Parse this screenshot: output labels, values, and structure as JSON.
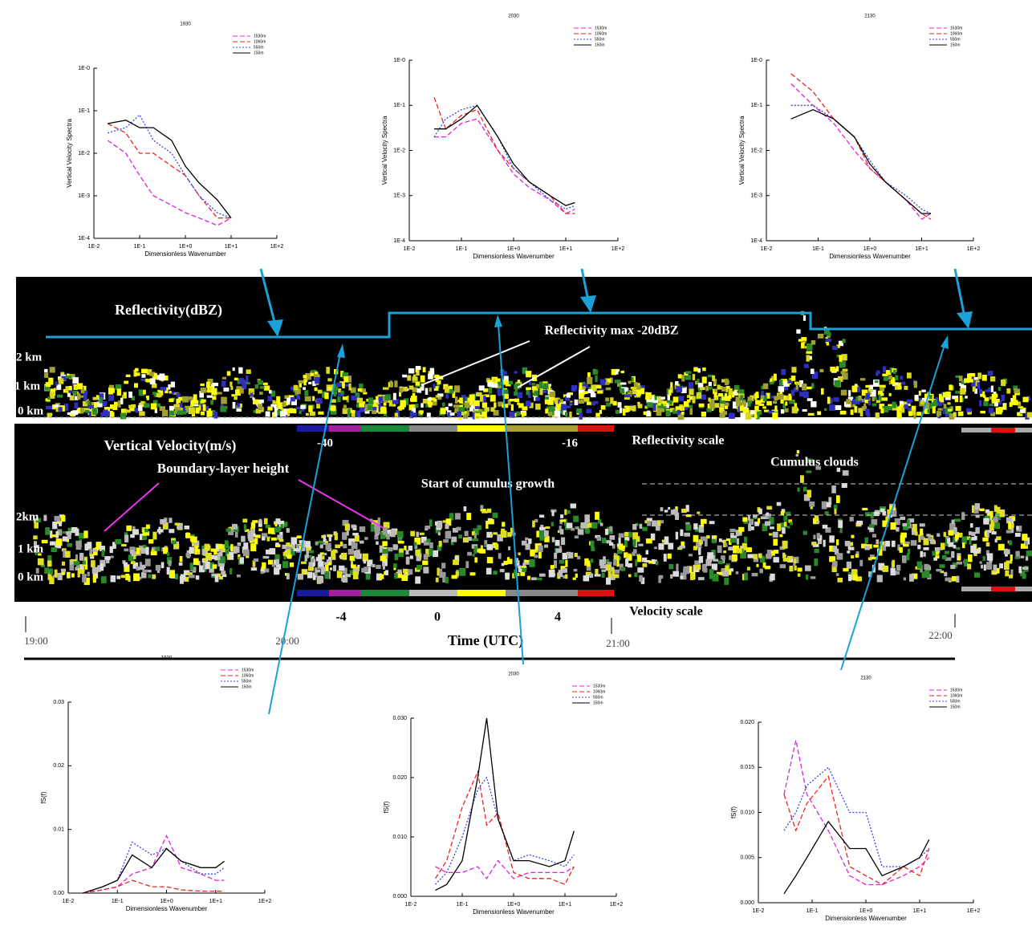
{
  "radar": {
    "reflectivity_title": "Reflectivity(dBZ)",
    "reflectivity_note": "Reflectivity max -20dBZ",
    "refl_heights": [
      "2 km",
      "1 km",
      "0 km"
    ],
    "refl_scale_ticks": [
      "-40",
      "-16"
    ],
    "refl_scale_label": "Reflectivity scale",
    "velocity_title": "Vertical Velocity(m/s)",
    "bl_note": "Boundary-layer height",
    "cumulus_start_note": "Start of cumulus growth",
    "cumulus_note": "Cumulus clouds",
    "vel_heights": [
      "2km",
      "1 km",
      "0 km"
    ],
    "vel_scale_ticks": [
      "-4",
      "0",
      "4"
    ],
    "vel_scale_label": "Velocity scale",
    "times": [
      "19:00",
      "20:00",
      "21:00",
      "22:00"
    ],
    "time_label": "Time (UTC)"
  },
  "chart_data": [
    {
      "type": "line",
      "title": "1930",
      "xlabel": "Dimensionless Wavenumber",
      "ylabel": "Vertical Velocity Spectra",
      "log_x": true,
      "log_y": true,
      "legend": "upper right",
      "x": [
        0.02,
        0.05,
        0.1,
        0.2,
        0.5,
        1,
        2,
        5,
        10
      ],
      "xlim": [
        0.01,
        100
      ],
      "xticks": [
        {
          "value": 0.01,
          "label": "1E-2"
        },
        {
          "value": 0.1,
          "label": "1E-1"
        },
        {
          "value": 1,
          "label": "1E+0"
        },
        {
          "value": 10,
          "label": "1E+1"
        },
        {
          "value": 100,
          "label": "1E+2"
        }
      ],
      "ylim": [
        0.0001,
        1
      ],
      "yticks": [
        {
          "value": 1,
          "label": "1E-0"
        },
        {
          "value": 0.1,
          "label": "1E-1"
        },
        {
          "value": 0.01,
          "label": "1E-2"
        },
        {
          "value": 0.001,
          "label": "1E-3"
        },
        {
          "value": 0.0001,
          "label": "1E-4"
        }
      ],
      "series": [
        {
          "name": "1530m",
          "color": "#dd22dd",
          "style": "dashed",
          "values": [
            0.02,
            0.01,
            0.003,
            0.001,
            0.0006,
            0.0004,
            0.0003,
            0.0002,
            0.0003
          ]
        },
        {
          "name": "1060m",
          "color": "#ee2222",
          "style": "dashed",
          "values": [
            0.05,
            0.03,
            0.01,
            0.01,
            0.005,
            0.003,
            0.001,
            0.0003,
            0.0003
          ]
        },
        {
          "name": "550m",
          "color": "#3344ee",
          "style": "dotted",
          "values": [
            0.03,
            0.04,
            0.08,
            0.02,
            0.01,
            0.003,
            0.001,
            0.0004,
            0.0003
          ]
        },
        {
          "name": "150m",
          "color": "#000000",
          "style": "solid",
          "values": [
            0.05,
            0.06,
            0.04,
            0.04,
            0.02,
            0.005,
            0.002,
            0.0008,
            0.0003
          ]
        }
      ]
    },
    {
      "type": "line",
      "title": "2030",
      "xlabel": "Dimensionless Wavenumber",
      "ylabel": "Vertical Velocity Spectra",
      "log_x": true,
      "log_y": true,
      "legend": "upper right",
      "x": [
        0.03,
        0.05,
        0.1,
        0.2,
        0.5,
        1,
        2,
        5,
        10,
        15
      ],
      "xlim": [
        0.01,
        100
      ],
      "xticks": [
        {
          "value": 0.01,
          "label": "1E-2"
        },
        {
          "value": 0.1,
          "label": "1E-1"
        },
        {
          "value": 1,
          "label": "1E+0"
        },
        {
          "value": 10,
          "label": "1E+1"
        },
        {
          "value": 100,
          "label": "1E+2"
        }
      ],
      "ylim": [
        0.0001,
        1
      ],
      "yticks": [
        {
          "value": 1,
          "label": "1E-0"
        },
        {
          "value": 0.1,
          "label": "1E-1"
        },
        {
          "value": 0.01,
          "label": "1E-2"
        },
        {
          "value": 0.001,
          "label": "1E-3"
        },
        {
          "value": 0.0001,
          "label": "1E-4"
        }
      ],
      "series": [
        {
          "name": "1530m",
          "color": "#dd22dd",
          "style": "dashed",
          "values": [
            0.02,
            0.02,
            0.04,
            0.05,
            0.01,
            0.003,
            0.0015,
            0.0008,
            0.0004,
            0.0005
          ]
        },
        {
          "name": "1060m",
          "color": "#ee2222",
          "style": "dashed",
          "values": [
            0.15,
            0.03,
            0.06,
            0.08,
            0.01,
            0.004,
            0.002,
            0.001,
            0.0004,
            0.0004
          ]
        },
        {
          "name": "550m",
          "color": "#3344ee",
          "style": "dotted",
          "values": [
            0.02,
            0.05,
            0.08,
            0.1,
            0.02,
            0.004,
            0.002,
            0.0008,
            0.0005,
            0.0006
          ]
        },
        {
          "name": "150m",
          "color": "#000000",
          "style": "solid",
          "values": [
            0.03,
            0.03,
            0.05,
            0.1,
            0.02,
            0.005,
            0.002,
            0.001,
            0.0006,
            0.0007
          ]
        }
      ]
    },
    {
      "type": "line",
      "title": "2130",
      "xlabel": "Dimensionless Wavenumber",
      "ylabel": "Vertical Velocity Spectra",
      "log_x": true,
      "log_y": true,
      "legend": "upper right",
      "x": [
        0.03,
        0.08,
        0.2,
        0.5,
        1,
        2,
        5,
        10,
        15
      ],
      "xlim": [
        0.01,
        100
      ],
      "xticks": [
        {
          "value": 0.01,
          "label": "1E-2"
        },
        {
          "value": 0.1,
          "label": "1E-1"
        },
        {
          "value": 1,
          "label": "1E+0"
        },
        {
          "value": 10,
          "label": "1E+1"
        },
        {
          "value": 100,
          "label": "1E+2"
        }
      ],
      "ylim": [
        0.0001,
        1
      ],
      "yticks": [
        {
          "value": 1,
          "label": "1E-0"
        },
        {
          "value": 0.1,
          "label": "1E-1"
        },
        {
          "value": 0.01,
          "label": "1E-2"
        },
        {
          "value": 0.001,
          "label": "1E-3"
        },
        {
          "value": 0.0001,
          "label": "1E-4"
        }
      ],
      "series": [
        {
          "name": "1530m",
          "color": "#dd22dd",
          "style": "dashed",
          "values": [
            0.3,
            0.1,
            0.04,
            0.01,
            0.004,
            0.002,
            0.0008,
            0.0003,
            0.0004
          ]
        },
        {
          "name": "1060m",
          "color": "#ee2222",
          "style": "dashed",
          "values": [
            0.5,
            0.2,
            0.05,
            0.02,
            0.004,
            0.002,
            0.0008,
            0.0004,
            0.0003
          ]
        },
        {
          "name": "550m",
          "color": "#3344ee",
          "style": "dotted",
          "values": [
            0.1,
            0.1,
            0.05,
            0.02,
            0.006,
            0.002,
            0.001,
            0.0005,
            0.0004
          ]
        },
        {
          "name": "150m",
          "color": "#000000",
          "style": "solid",
          "values": [
            0.05,
            0.08,
            0.05,
            0.02,
            0.005,
            0.002,
            0.0008,
            0.0004,
            0.0004
          ]
        }
      ]
    },
    {
      "type": "line",
      "title": "1930",
      "xlabel": "Dimensionless Wavenumber",
      "ylabel": "fS(f)",
      "log_x": true,
      "log_y": false,
      "legend": "upper right",
      "x": [
        0.02,
        0.05,
        0.1,
        0.2,
        0.5,
        1,
        2,
        5,
        10,
        15
      ],
      "xlim": [
        0.01,
        100
      ],
      "xticks": [
        {
          "value": 0.01,
          "label": "1E-2"
        },
        {
          "value": 0.1,
          "label": "1E-1"
        },
        {
          "value": 1,
          "label": "1E+0"
        },
        {
          "value": 10,
          "label": "1E+1"
        },
        {
          "value": 100,
          "label": "1E+2"
        }
      ],
      "ylim": [
        0,
        0.03
      ],
      "yticks": [
        {
          "value": 0,
          "label": "0.00"
        },
        {
          "value": 0.01,
          "label": "0.01"
        },
        {
          "value": 0.02,
          "label": "0.02"
        },
        {
          "value": 0.03,
          "label": "0.03"
        }
      ],
      "series": [
        {
          "name": "1530m",
          "color": "#dd22dd",
          "style": "dashed",
          "values": [
            0,
            0.0005,
            0.001,
            0.003,
            0.004,
            0.009,
            0.004,
            0.003,
            0.002,
            0.002
          ]
        },
        {
          "name": "1060m",
          "color": "#ee2222",
          "style": "dashed",
          "values": [
            0,
            0.0005,
            0.001,
            0.002,
            0.001,
            0.001,
            0.0005,
            0.0003,
            0.0003,
            0.0003
          ]
        },
        {
          "name": "550m",
          "color": "#3344ee",
          "style": "dotted",
          "values": [
            0,
            0.001,
            0.002,
            0.008,
            0.006,
            0.007,
            0.005,
            0.003,
            0.003,
            0.004
          ]
        },
        {
          "name": "150m",
          "color": "#000000",
          "style": "solid",
          "values": [
            0,
            0.001,
            0.002,
            0.006,
            0.004,
            0.007,
            0.005,
            0.004,
            0.004,
            0.005
          ]
        }
      ]
    },
    {
      "type": "line",
      "title": "2030",
      "xlabel": "Dimensionless Wavenumber",
      "ylabel": "fS(f)",
      "log_x": true,
      "log_y": false,
      "legend": "upper right",
      "x": [
        0.03,
        0.05,
        0.1,
        0.2,
        0.3,
        0.5,
        1,
        2,
        5,
        10,
        15
      ],
      "xlim": [
        0.01,
        100
      ],
      "xticks": [
        {
          "value": 0.01,
          "label": "1E-2"
        },
        {
          "value": 0.1,
          "label": "1E-1"
        },
        {
          "value": 1,
          "label": "1E+0"
        },
        {
          "value": 10,
          "label": "1E+1"
        },
        {
          "value": 100,
          "label": "1E+2"
        }
      ],
      "ylim": [
        0,
        0.03
      ],
      "yticks": [
        {
          "value": 0,
          "label": "0.000"
        },
        {
          "value": 0.01,
          "label": "0.010"
        },
        {
          "value": 0.02,
          "label": "0.020"
        },
        {
          "value": 0.03,
          "label": "0.030"
        }
      ],
      "series": [
        {
          "name": "1530m",
          "color": "#dd22dd",
          "style": "dashed",
          "values": [
            0.005,
            0.004,
            0.004,
            0.005,
            0.003,
            0.006,
            0.003,
            0.004,
            0.004,
            0.004,
            0.005
          ]
        },
        {
          "name": "1060m",
          "color": "#ee2222",
          "style": "dashed",
          "values": [
            0.003,
            0.006,
            0.015,
            0.021,
            0.012,
            0.014,
            0.004,
            0.003,
            0.003,
            0.002,
            0.005
          ]
        },
        {
          "name": "550m",
          "color": "#3344ee",
          "style": "dotted",
          "values": [
            0.002,
            0.004,
            0.01,
            0.018,
            0.02,
            0.013,
            0.006,
            0.007,
            0.006,
            0.005,
            0.007
          ]
        },
        {
          "name": "150m",
          "color": "#000000",
          "style": "solid",
          "values": [
            0.001,
            0.002,
            0.006,
            0.02,
            0.03,
            0.013,
            0.006,
            0.006,
            0.005,
            0.006,
            0.011
          ]
        }
      ]
    },
    {
      "type": "line",
      "title": "2130",
      "xlabel": "Dimensionless Wavenumber",
      "ylabel": "fS(f)",
      "log_x": true,
      "log_y": false,
      "legend": "upper right",
      "x": [
        0.03,
        0.05,
        0.08,
        0.2,
        0.5,
        1,
        2,
        5,
        10,
        15
      ],
      "xlim": [
        0.01,
        100
      ],
      "xticks": [
        {
          "value": 0.01,
          "label": "1E-2"
        },
        {
          "value": 0.1,
          "label": "1E-1"
        },
        {
          "value": 1,
          "label": "1E+0"
        },
        {
          "value": 10,
          "label": "1E+1"
        },
        {
          "value": 100,
          "label": "1E+2"
        }
      ],
      "ylim": [
        0,
        0.02
      ],
      "yticks": [
        {
          "value": 0,
          "label": "0.000"
        },
        {
          "value": 0.005,
          "label": "0.005"
        },
        {
          "value": 0.01,
          "label": "0.010"
        },
        {
          "value": 0.015,
          "label": "0.015"
        },
        {
          "value": 0.02,
          "label": "0.020"
        }
      ],
      "series": [
        {
          "name": "1530m",
          "color": "#dd22dd",
          "style": "dashed",
          "values": [
            0.012,
            0.018,
            0.012,
            0.008,
            0.003,
            0.002,
            0.002,
            0.003,
            0.004,
            0.005
          ]
        },
        {
          "name": "1060m",
          "color": "#ee2222",
          "style": "dashed",
          "values": [
            0.012,
            0.008,
            0.011,
            0.014,
            0.004,
            0.003,
            0.002,
            0.004,
            0.003,
            0.006
          ]
        },
        {
          "name": "550m",
          "color": "#3344ee",
          "style": "dotted",
          "values": [
            0.008,
            0.01,
            0.013,
            0.015,
            0.01,
            0.01,
            0.004,
            0.004,
            0.005,
            0.006
          ]
        },
        {
          "name": "150m",
          "color": "#000000",
          "style": "solid",
          "values": [
            0.001,
            0.003,
            0.005,
            0.009,
            0.006,
            0.006,
            0.003,
            0.004,
            0.005,
            0.007
          ]
        }
      ]
    }
  ]
}
